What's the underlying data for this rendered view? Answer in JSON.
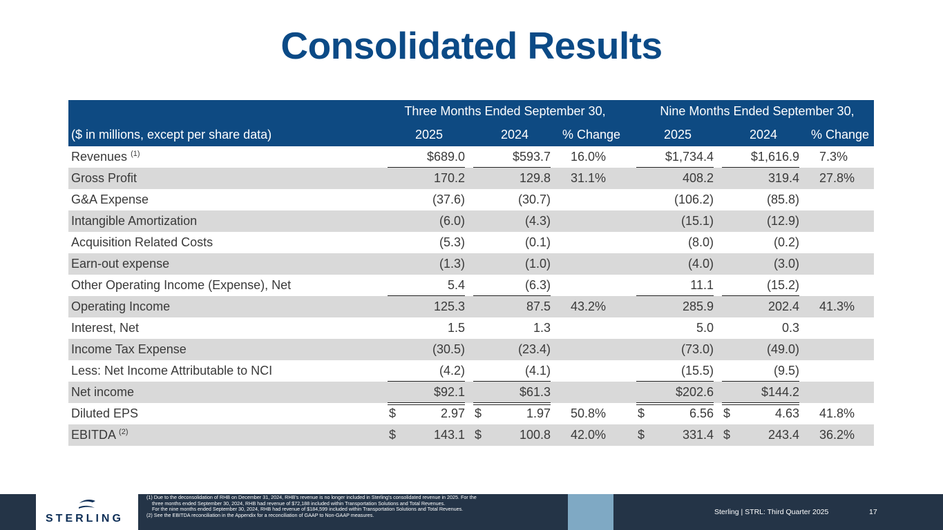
{
  "title": "Consolidated Results",
  "header": {
    "group1": "Three Months Ended September 30,",
    "group2": "Nine Months Ended September 30,",
    "row_label": "($ in millions, except per share data)",
    "columns": [
      "2025",
      "2024",
      "% Change",
      "2025",
      "2024",
      "% Change"
    ]
  },
  "rows": [
    {
      "label": "Revenues",
      "sup": "(1)",
      "v": [
        "$689.0",
        "$593.7",
        "16.0%",
        "$1,734.4",
        "$1,616.9",
        "7.3%"
      ]
    },
    {
      "label": "Gross Profit",
      "sup": "",
      "v": [
        "170.2",
        "129.8",
        "31.1%",
        "408.2",
        "319.4",
        "27.8%"
      ]
    },
    {
      "label": "G&A Expense",
      "sup": "",
      "v": [
        "(37.6)",
        "(30.7)",
        "",
        "(106.2)",
        "(85.8)",
        ""
      ]
    },
    {
      "label": "Intangible Amortization",
      "sup": "",
      "v": [
        "(6.0)",
        "(4.3)",
        "",
        "(15.1)",
        "(12.9)",
        ""
      ]
    },
    {
      "label": "Acquisition Related Costs",
      "sup": "",
      "v": [
        "(5.3)",
        "(0.1)",
        "",
        "(8.0)",
        "(0.2)",
        ""
      ]
    },
    {
      "label": "Earn-out expense",
      "sup": "",
      "v": [
        "(1.3)",
        "(1.0)",
        "",
        "(4.0)",
        "(3.0)",
        ""
      ]
    },
    {
      "label": "Other Operating Income (Expense), Net",
      "sup": "",
      "v": [
        "5.4",
        "(6.3)",
        "",
        "11.1",
        "(15.2)",
        ""
      ]
    },
    {
      "label": "Operating Income",
      "sup": "",
      "v": [
        "125.3",
        "87.5",
        "43.2%",
        "285.9",
        "202.4",
        "41.3%"
      ]
    },
    {
      "label": "Interest, Net",
      "sup": "",
      "v": [
        "1.5",
        "1.3",
        "",
        "5.0",
        "0.3",
        ""
      ]
    },
    {
      "label": "Income Tax Expense",
      "sup": "",
      "v": [
        "(30.5)",
        "(23.4)",
        "",
        "(73.0)",
        "(49.0)",
        ""
      ]
    },
    {
      "label": "Less: Net Income Attributable to NCI",
      "sup": "",
      "v": [
        "(4.2)",
        "(4.1)",
        "",
        "(15.5)",
        "(9.5)",
        ""
      ]
    },
    {
      "label": "Net income",
      "sup": "",
      "v": [
        "$92.1",
        "$61.3",
        "",
        "$202.6",
        "$144.2",
        ""
      ]
    },
    {
      "label": "Diluted EPS",
      "sup": "",
      "dollar": "$",
      "v": [
        "2.97",
        "1.97",
        "50.8%",
        "6.56",
        "4.63",
        "41.8%"
      ]
    },
    {
      "label": "EBITDA",
      "sup": "(2)",
      "dollar": "$",
      "v": [
        "143.1",
        "100.8",
        "42.0%",
        "331.4",
        "243.4",
        "36.2%"
      ]
    }
  ],
  "footnotes": {
    "n1_line1": "(1)  Due to the deconsolidation of RHB on December 31, 2024, RHB's revenue is no longer included in Sterling's consolidated revenue in 2025. For the",
    "n1_line2": "three months ended September 30, 2024, RHB had revenue of $72,188 included within Transportation Solutions and Total Revenues.",
    "n1_line3": "For the nine months ended September 30, 2024, RHB had revenue of $184,599 included within Transportation Solutions and Total Revenues.",
    "n2": "(2)  See the EBITDA reconciliation in the Appendix for a reconciliation of GAAP to Non-GAAP measures."
  },
  "footer": {
    "logo_text": "STERLING",
    "company_line": "Sterling | STRL:  Third Quarter  2025",
    "page_number": "17"
  },
  "colors": {
    "title": "#0b4a86",
    "header_bg": "#0e4a82",
    "shade": "#d9d9d9",
    "footer_bg": "#243447",
    "accent": "#7fa9c4"
  }
}
